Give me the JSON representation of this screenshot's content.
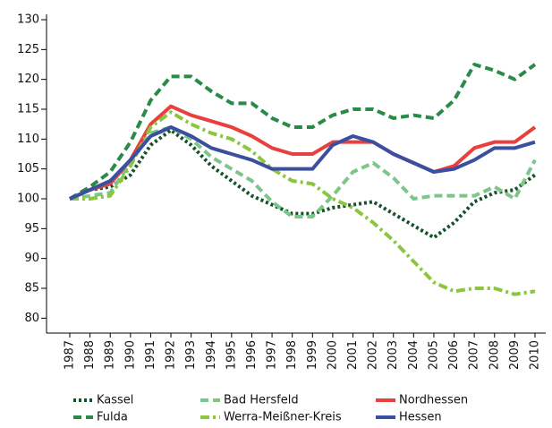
{
  "chart_data": {
    "type": "line",
    "categories": [
      "1987",
      "1988",
      "1989",
      "1990",
      "1991",
      "1992",
      "1993",
      "1994",
      "1995",
      "1996",
      "1997",
      "1998",
      "1999",
      "2000",
      "2001",
      "2002",
      "2003",
      "2004",
      "2005",
      "2006",
      "2007",
      "2008",
      "2009",
      "2010"
    ],
    "ylim": [
      77.5,
      130
    ],
    "yticks": [
      80,
      85,
      90,
      95,
      100,
      105,
      110,
      115,
      120,
      125,
      130
    ],
    "grid": false,
    "legend": "bottom",
    "series": [
      {
        "name": "Kassel",
        "color": "#17522a",
        "style": "dotted",
        "values": [
          100,
          101.5,
          102,
          104,
          109,
          111.5,
          109,
          105.5,
          103,
          100.5,
          99,
          97.5,
          97.5,
          98.5,
          99,
          99.5,
          97.5,
          95.5,
          93.5,
          96,
          99.5,
          101,
          101.5,
          104
        ]
      },
      {
        "name": "Bad Hersfeld",
        "color": "#7cc68a",
        "style": "dashed",
        "values": [
          100,
          100.5,
          101,
          106,
          111,
          112,
          110,
          107,
          105,
          103,
          99.5,
          97,
          97,
          100.5,
          104.5,
          106,
          103.5,
          100,
          100.5,
          100.5,
          100.5,
          102,
          100,
          106.5
        ]
      },
      {
        "name": "Nordhessen",
        "color": "#e8403f",
        "style": "solid",
        "values": [
          100,
          101.5,
          102.5,
          106.5,
          112.5,
          115.5,
          114,
          113,
          112,
          110.5,
          108.5,
          107.5,
          107.5,
          109.5,
          109.5,
          109.5,
          107.5,
          106,
          104.5,
          105.5,
          108.5,
          109.5,
          109.5,
          112
        ]
      },
      {
        "name": "Fulda",
        "color": "#2a8a48",
        "style": "dashed",
        "values": [
          100,
          102,
          104.5,
          109.5,
          116.5,
          120.5,
          120.5,
          118,
          116,
          116,
          113.5,
          112,
          112,
          114,
          115,
          115,
          113.5,
          114,
          113.5,
          116.5,
          122.5,
          121.5,
          120,
          122.5
        ]
      },
      {
        "name": "Werra-Meißner-Kreis",
        "color": "#8cc63e",
        "style": "dashdot",
        "values": [
          100,
          100,
          100.5,
          105.5,
          112,
          114.5,
          112.5,
          111,
          110,
          108,
          105,
          103,
          102.5,
          100,
          98.5,
          96,
          93,
          89.5,
          86,
          84.5,
          85,
          85,
          84,
          84.5
        ]
      },
      {
        "name": "Hessen",
        "color": "#3a4fa0",
        "style": "solid",
        "values": [
          100,
          101.5,
          103,
          106.5,
          110.5,
          112,
          110.5,
          108.5,
          107.5,
          106.5,
          105,
          105,
          105,
          109,
          110.5,
          109.5,
          107.5,
          106,
          104.5,
          105,
          106.5,
          108.5,
          108.5,
          109.5
        ]
      }
    ]
  }
}
